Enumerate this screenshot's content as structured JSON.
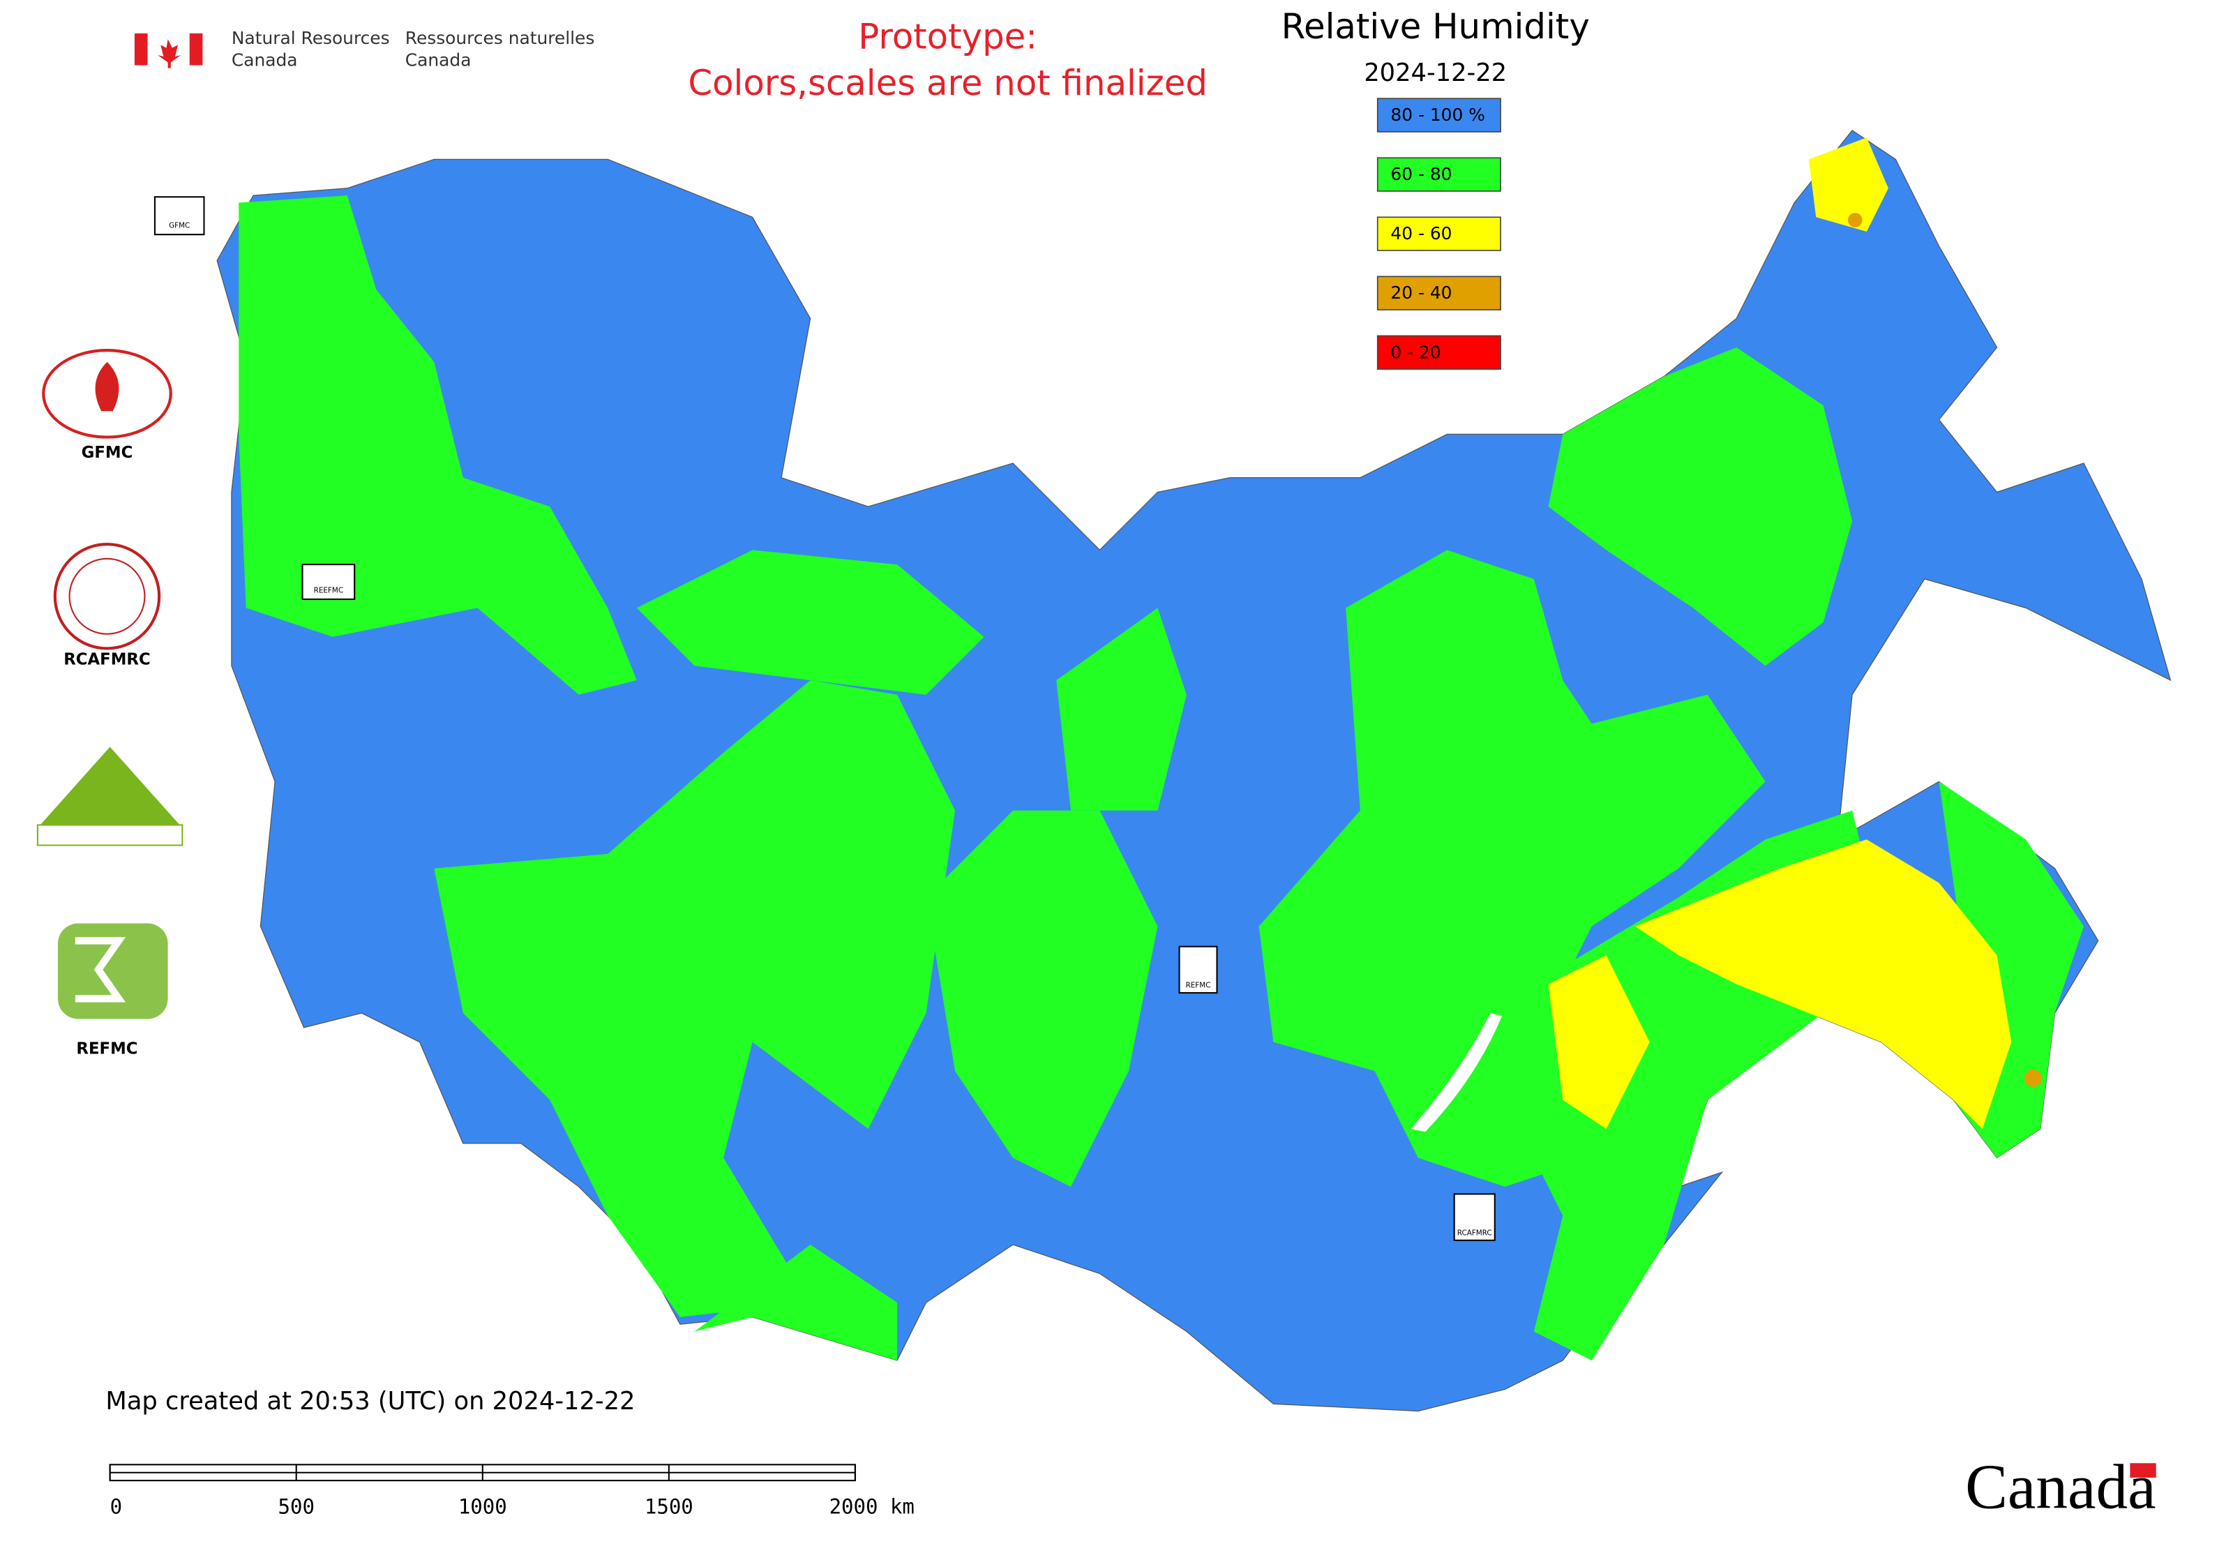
{
  "header": {
    "agency_en": [
      "Natural Resources",
      "Canada"
    ],
    "agency_fr": [
      "Ressources naturelles",
      "Canada"
    ]
  },
  "notice": [
    "Prototype:",
    "Colors,scales are not finalized"
  ],
  "title": "Relative Humidity",
  "date": "2024-12-22",
  "legend": [
    {
      "label": "80 - 100 %",
      "color": "#3a87f0"
    },
    {
      "label": "60 - 80",
      "color": "#22ff22"
    },
    {
      "label": "40 - 60",
      "color": "#ffff00"
    },
    {
      "label": "20 - 40",
      "color": "#e0a000"
    },
    {
      "label": "0 - 20",
      "color": "#ff0000"
    }
  ],
  "logos": [
    "GFMC",
    "RCAFMRC",
    "REFMC"
  ],
  "map_markers": [
    "GFMC",
    "REEFMC",
    "REFMC",
    "RCAFMRC"
  ],
  "footer": {
    "created": "Map created at 20:53 (UTC) on 2024-12-22",
    "scale_labels": [
      "0",
      "500",
      "1000",
      "1500",
      "2000 km"
    ],
    "wordmark": "Canada"
  }
}
